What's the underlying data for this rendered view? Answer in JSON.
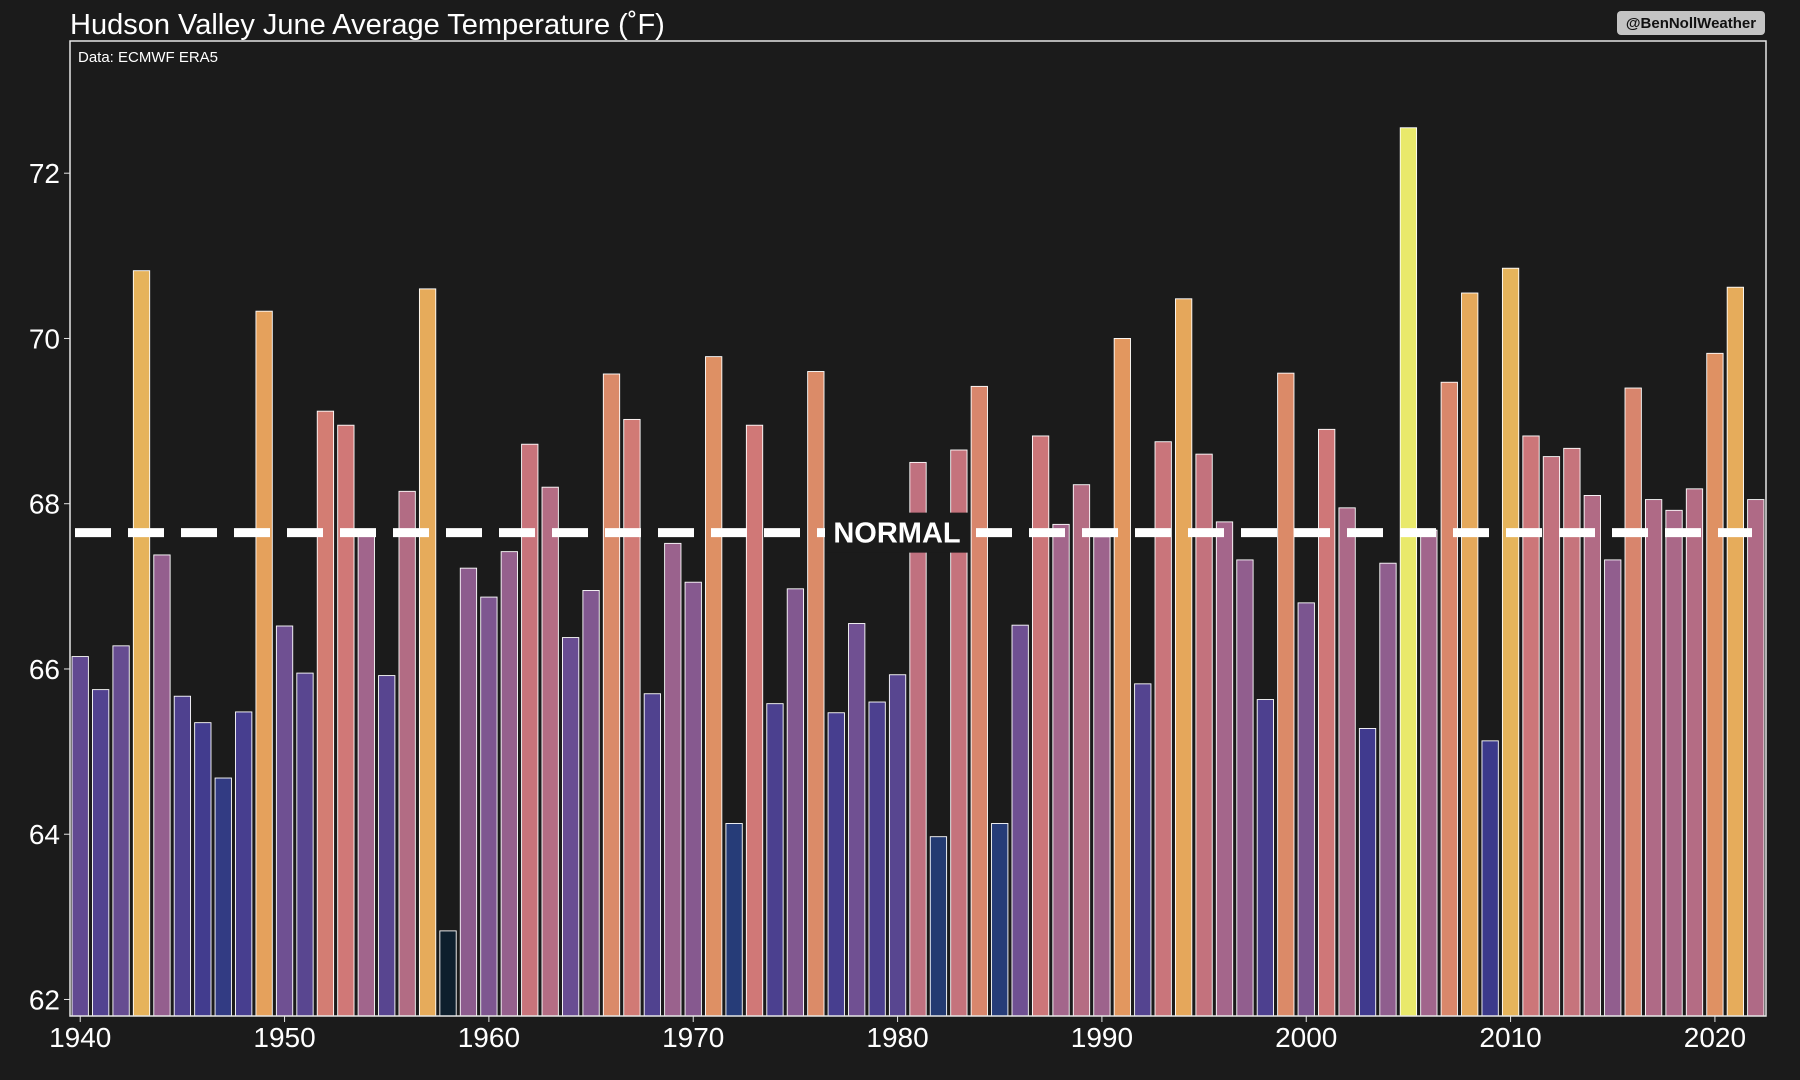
{
  "chart_data": {
    "type": "bar",
    "title": "Hudson Valley June Average Temperature (˚F)",
    "source_note": "Data: ECMWF ERA5",
    "credit": "@BenNollWeather",
    "normal_label": "NORMAL",
    "normal_value": 67.65,
    "xlabel": "",
    "ylabel": "",
    "xlim": [
      1939.5,
      2022.5
    ],
    "ylim": [
      61.8,
      73.6
    ],
    "x_ticks": [
      1940,
      1950,
      1960,
      1970,
      1980,
      1990,
      2000,
      2010,
      2020
    ],
    "y_ticks": [
      62,
      64,
      66,
      68,
      70,
      72
    ],
    "grid": false,
    "colormap": [
      "#0d1f2d",
      "#243c76",
      "#3f3a8e",
      "#6d4f92",
      "#a1658c",
      "#cf7778",
      "#e49a5c",
      "#e8c55a",
      "#e9e96b"
    ],
    "x": [
      1940,
      1941,
      1942,
      1943,
      1944,
      1945,
      1946,
      1947,
      1948,
      1949,
      1950,
      1951,
      1952,
      1953,
      1954,
      1955,
      1956,
      1957,
      1958,
      1959,
      1960,
      1961,
      1962,
      1963,
      1964,
      1965,
      1966,
      1967,
      1968,
      1969,
      1970,
      1971,
      1972,
      1973,
      1974,
      1975,
      1976,
      1977,
      1978,
      1979,
      1980,
      1981,
      1982,
      1983,
      1984,
      1985,
      1986,
      1987,
      1988,
      1989,
      1990,
      1991,
      1992,
      1993,
      1994,
      1995,
      1996,
      1997,
      1998,
      1999,
      2000,
      2001,
      2002,
      2003,
      2004,
      2005,
      2006,
      2007,
      2008,
      2009,
      2010,
      2011,
      2012,
      2013,
      2014,
      2015,
      2016,
      2017,
      2018,
      2019,
      2020,
      2021,
      2022
    ],
    "values": [
      66.15,
      65.75,
      66.28,
      70.82,
      67.38,
      65.67,
      65.35,
      64.68,
      65.48,
      70.33,
      66.52,
      65.95,
      69.12,
      68.95,
      67.68,
      65.92,
      68.15,
      70.6,
      62.83,
      67.22,
      66.87,
      67.42,
      68.72,
      68.2,
      66.38,
      66.95,
      69.57,
      69.02,
      65.7,
      67.52,
      67.05,
      69.78,
      64.13,
      68.95,
      65.58,
      66.97,
      69.6,
      65.47,
      66.55,
      65.6,
      65.93,
      68.5,
      63.97,
      68.65,
      69.42,
      64.13,
      66.53,
      68.82,
      67.75,
      68.23,
      67.6,
      70.0,
      65.82,
      68.75,
      70.48,
      68.6,
      67.78,
      67.32,
      65.63,
      69.58,
      66.8,
      68.9,
      67.95,
      65.28,
      67.28,
      72.55,
      67.68,
      69.47,
      70.55,
      65.13,
      70.85,
      68.82,
      68.57,
      68.67,
      68.1,
      67.32,
      69.4,
      68.05,
      67.92,
      68.18,
      69.82,
      70.62,
      68.05
    ]
  }
}
